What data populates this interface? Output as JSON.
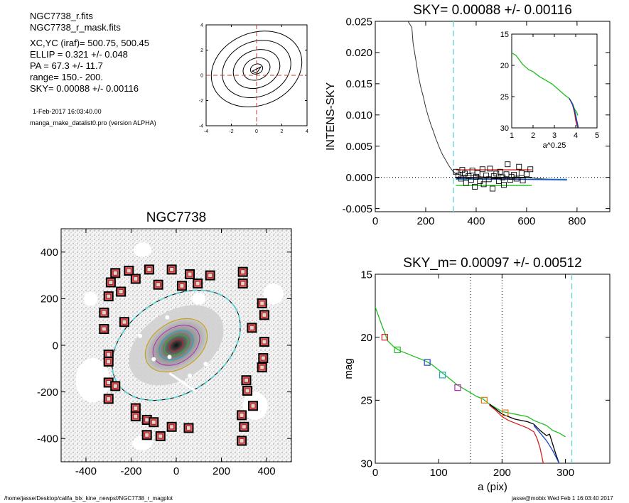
{
  "header": {
    "files": [
      "NGC7738_r.fits",
      "NGC7738_r_mask.fits"
    ],
    "params": [
      "XC,YC (iraf)=   500.75, 500.45",
      "ELLIP = 0.321 +/- 0.048",
      "PA    =  67.3 +/-  11.7",
      "range=  150.-  200.",
      "SKY= 0.00088 +/- 0.00116"
    ],
    "date": "1-Feb-2017 16:03:40.00",
    "program": "manga_make_datalist0.pro (version ALPHA)"
  },
  "footer": {
    "path": "/home/jasse/Desktop/califa_blx_kine_newpsf/NGC7738_r_magplot",
    "user": "jasse@mobix  Wed Feb  1 16:03:40 2017"
  },
  "colors": {
    "cyan_dash": "#5fd3d3",
    "red_dash": "#c0392b",
    "mask_square": "#b01818",
    "curve_red": "#d42020",
    "curve_green": "#1fbf1f",
    "curve_blue": "#1a44c8",
    "curve_cyan": "#1aa8c8",
    "curve_magenta": "#c020c0",
    "curve_orange": "#e07b20",
    "curve_black": "#000000"
  },
  "chart_data": [
    {
      "type": "contour",
      "name": "centroid-contours",
      "xlim": [
        -4,
        4
      ],
      "ylim": [
        -4,
        4
      ],
      "xticks": [
        -4,
        -2,
        0,
        2,
        4
      ],
      "yticks": [
        -4,
        -2,
        0,
        2,
        4
      ],
      "contour_radii": [
        0.5,
        1.1,
        1.9,
        2.8,
        3.7
      ],
      "ellip": 0.321,
      "pa": 67.3,
      "center": [
        0,
        0.5
      ]
    },
    {
      "type": "scatter",
      "name": "sky-profile",
      "title": "SKY= 0.00088 +/- 0.00116",
      "xlabel": "",
      "ylabel": "INTENS-SKY",
      "xlim": [
        0,
        930
      ],
      "ylim": [
        -0.0055,
        0.025
      ],
      "xticks": [
        0,
        200,
        400,
        600,
        800
      ],
      "yticks": [
        -0.005,
        0.0,
        0.005,
        0.01,
        0.015,
        0.02,
        0.025
      ],
      "ytick_labels": [
        "-0.005",
        "0.000",
        "0.005",
        "0.010",
        "0.015",
        "0.020",
        "0.025"
      ],
      "sky_radius": 310,
      "profile": [
        [
          130,
          0.025
        ],
        [
          145,
          0.024
        ],
        [
          150,
          0.0215
        ],
        [
          160,
          0.019
        ],
        [
          170,
          0.0165
        ],
        [
          180,
          0.0145
        ],
        [
          190,
          0.013
        ],
        [
          200,
          0.0112
        ],
        [
          210,
          0.0098
        ],
        [
          220,
          0.0085
        ],
        [
          230,
          0.0074
        ],
        [
          240,
          0.0062
        ],
        [
          250,
          0.0052
        ],
        [
          260,
          0.0042
        ],
        [
          270,
          0.0034
        ],
        [
          280,
          0.0027
        ],
        [
          290,
          0.002
        ],
        [
          300,
          0.0014
        ],
        [
          310,
          0.0009
        ],
        [
          320,
          0.0006
        ],
        [
          340,
          0.0004
        ],
        [
          380,
          0.0003
        ],
        [
          420,
          0.0001
        ],
        [
          480,
          -0.0001
        ],
        [
          540,
          -0.0002
        ],
        [
          600,
          0.0
        ],
        [
          650,
          -0.0002
        ],
        [
          700,
          -0.0003
        ],
        [
          760,
          -0.0004
        ]
      ],
      "points": [
        [
          320,
          0.0009
        ],
        [
          330,
          0.0003
        ],
        [
          340,
          -0.0002
        ],
        [
          345,
          0.0012
        ],
        [
          355,
          0.0006
        ],
        [
          360,
          -0.0009
        ],
        [
          370,
          0.0002
        ],
        [
          380,
          -0.0004
        ],
        [
          385,
          0.0011
        ],
        [
          395,
          -0.0015
        ],
        [
          400,
          0.0001
        ],
        [
          405,
          0.0007
        ],
        [
          415,
          -0.0006
        ],
        [
          425,
          0.0013
        ],
        [
          430,
          -0.0011
        ],
        [
          440,
          0.0003
        ],
        [
          450,
          -0.0003
        ],
        [
          455,
          0.0014
        ],
        [
          465,
          -0.0018
        ],
        [
          470,
          0.0002
        ],
        [
          480,
          0.0006
        ],
        [
          490,
          -0.0006
        ],
        [
          495,
          0.0009
        ],
        [
          505,
          0.0
        ],
        [
          510,
          -0.0012
        ],
        [
          520,
          0.0005
        ],
        [
          525,
          0.0021
        ],
        [
          535,
          -0.0004
        ],
        [
          540,
          0.0001
        ],
        [
          550,
          0.0004
        ],
        [
          560,
          -0.0002
        ],
        [
          570,
          0.0017
        ],
        [
          580,
          0.0007
        ],
        [
          585,
          -0.0005
        ],
        [
          600,
          0.0005
        ],
        [
          615,
          0.0013
        ]
      ],
      "fits": [
        {
          "color": "red",
          "x": [
            320,
            620
          ],
          "y": [
            0.0012,
            0.0012
          ]
        },
        {
          "color": "green",
          "x": [
            320,
            620
          ],
          "y": [
            -0.0013,
            -0.0013
          ]
        },
        {
          "color": "black",
          "x": [
            320,
            620
          ],
          "y": [
            0.0,
            0.0
          ]
        },
        {
          "color": "cyan",
          "x": [
            320,
            760
          ],
          "y": [
            -0.0003,
            -0.0003
          ]
        },
        {
          "color": "blue",
          "x": [
            320,
            760
          ],
          "y": [
            -0.0002,
            -0.0004
          ]
        }
      ]
    },
    {
      "type": "line",
      "name": "inset-mag-vs-a025",
      "xlabel": "a^0.25",
      "xlim": [
        1,
        5
      ],
      "ylim": [
        30,
        15
      ],
      "xticks": [
        1,
        2,
        3,
        4,
        5
      ],
      "yticks": [
        15,
        20,
        25,
        30
      ],
      "series": [
        {
          "color": "green",
          "x": [
            1.0,
            1.2,
            1.5,
            1.8,
            2.0,
            2.3,
            2.6,
            2.9,
            3.2,
            3.5,
            3.7,
            3.85,
            3.95,
            4.05,
            4.1
          ],
          "y": [
            18.0,
            18.4,
            19.8,
            20.7,
            21.0,
            21.8,
            22.4,
            23.0,
            23.9,
            24.8,
            25.3,
            26.1,
            27.0,
            27.5,
            28.0
          ]
        },
        {
          "color": "red",
          "x": [
            3.7,
            3.85,
            3.95,
            4.0,
            4.05,
            4.1
          ],
          "y": [
            25.3,
            26.3,
            27.6,
            28.8,
            29.5,
            30.0
          ]
        },
        {
          "color": "black",
          "x": [
            3.7,
            3.85,
            3.95,
            4.02,
            4.08,
            4.12
          ],
          "y": [
            25.3,
            26.2,
            27.3,
            28.4,
            29.3,
            30.0
          ]
        },
        {
          "color": "blue",
          "x": [
            3.7,
            3.85,
            3.98,
            4.05,
            4.1
          ],
          "y": [
            25.3,
            26.2,
            27.6,
            28.8,
            30.0
          ]
        }
      ]
    },
    {
      "type": "image",
      "name": "galaxy-mask-image",
      "title": "NGC7738",
      "xlim": [
        -510,
        510
      ],
      "ylim": [
        -500,
        500
      ],
      "xticks": [
        -400,
        -200,
        0,
        200,
        400
      ],
      "yticks": [
        -400,
        -200,
        0,
        200,
        400
      ],
      "inner_ellipse": {
        "a": 150,
        "b": 102,
        "pa_deg": 33
      },
      "outer_ellipse": {
        "a": 310,
        "b": 210,
        "pa_deg": 33
      },
      "mask_squares": [
        [
          -270,
          310
        ],
        [
          -210,
          320
        ],
        [
          -120,
          325
        ],
        [
          -20,
          325
        ],
        [
          60,
          305
        ],
        [
          150,
          300
        ],
        [
          295,
          315
        ],
        [
          295,
          265
        ],
        [
          -290,
          270
        ],
        [
          -180,
          285
        ],
        [
          -80,
          260
        ],
        [
          25,
          255
        ],
        [
          95,
          265
        ],
        [
          -300,
          210
        ],
        [
          -245,
          230
        ],
        [
          -320,
          140
        ],
        [
          -230,
          100
        ],
        [
          -320,
          70
        ],
        [
          380,
          180
        ],
        [
          390,
          130
        ],
        [
          335,
          75
        ],
        [
          390,
          15
        ],
        [
          385,
          -55
        ],
        [
          380,
          -95
        ],
        [
          -300,
          -40
        ],
        [
          -300,
          -70
        ],
        [
          -300,
          -160
        ],
        [
          -270,
          -175
        ],
        [
          -300,
          -230
        ],
        [
          -180,
          -270
        ],
        [
          -180,
          -305
        ],
        [
          -130,
          -320
        ],
        [
          -100,
          -330
        ],
        [
          -20,
          -350
        ],
        [
          55,
          -355
        ],
        [
          -130,
          -385
        ],
        [
          -70,
          -390
        ],
        [
          310,
          -150
        ],
        [
          315,
          -195
        ],
        [
          340,
          -260
        ],
        [
          290,
          -300
        ],
        [
          300,
          -350
        ],
        [
          290,
          -410
        ]
      ]
    },
    {
      "type": "line",
      "name": "mag-profile",
      "title": "SKY_m=  0.00097 +/- 0.00512",
      "xlabel": "a (pix)",
      "ylabel": "mag",
      "xlim": [
        0,
        370
      ],
      "ylim": [
        30,
        15
      ],
      "xticks": [
        0,
        100,
        200,
        300
      ],
      "yticks": [
        15,
        20,
        25,
        30
      ],
      "range_lines": [
        150,
        200
      ],
      "sky_radius": 310,
      "series": [
        {
          "color": "green",
          "x": [
            0,
            10,
            20,
            30,
            40,
            50,
            60,
            70,
            80,
            90,
            100,
            110,
            120,
            130,
            140,
            150,
            160,
            170,
            180,
            190,
            200,
            210,
            220,
            230,
            240,
            250,
            260,
            270,
            280,
            290,
            300
          ],
          "y": [
            17.6,
            19.0,
            20.3,
            20.8,
            21.1,
            21.3,
            21.5,
            21.7,
            21.9,
            22.2,
            22.6,
            23.0,
            23.4,
            23.8,
            24.1,
            24.4,
            24.7,
            24.9,
            25.3,
            25.6,
            25.9,
            26.0,
            26.1,
            26.2,
            26.3,
            26.6,
            26.8,
            27.0,
            27.4,
            27.6,
            27.9
          ]
        },
        {
          "color": "red",
          "x": [
            180,
            190,
            200,
            210,
            220,
            230,
            240,
            250,
            255,
            260,
            265,
            270
          ],
          "y": [
            25.4,
            25.8,
            26.3,
            26.6,
            26.8,
            27.0,
            27.2,
            27.5,
            28.0,
            28.8,
            30.0,
            30.0
          ]
        },
        {
          "color": "black",
          "x": [
            180,
            190,
            200,
            210,
            220,
            230,
            240,
            250,
            260,
            270,
            275,
            280,
            285,
            290
          ],
          "y": [
            25.3,
            25.7,
            26.1,
            26.3,
            26.5,
            26.6,
            26.7,
            26.9,
            27.4,
            27.8,
            27.7,
            28.5,
            29.3,
            30.0
          ]
        },
        {
          "color": "blue",
          "x": [
            250,
            260,
            270,
            275,
            280,
            285,
            290
          ],
          "y": [
            27.0,
            27.6,
            28.2,
            28.6,
            29.0,
            29.5,
            30.0
          ]
        }
      ],
      "markers": [
        {
          "color": "red",
          "x": 15,
          "y": 20.0
        },
        {
          "color": "green",
          "x": 35,
          "y": 21.0
        },
        {
          "color": "blue",
          "x": 82,
          "y": 22.0
        },
        {
          "color": "cyan",
          "x": 106,
          "y": 23.0
        },
        {
          "color": "magenta",
          "x": 130,
          "y": 24.0
        },
        {
          "color": "orange",
          "x": 172,
          "y": 25.0
        },
        {
          "color": "orange",
          "x": 205,
          "y": 26.0
        }
      ]
    }
  ]
}
